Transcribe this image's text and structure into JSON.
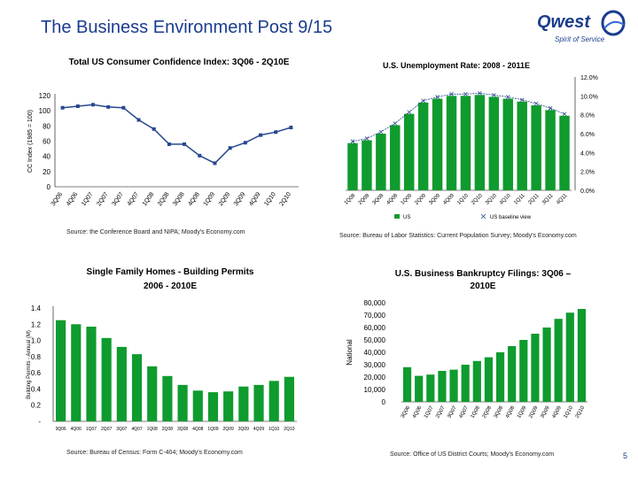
{
  "slide": {
    "title": "The Business Environment Post 9/15",
    "page_number": "5",
    "logo": {
      "name": "Qwest",
      "tagline": "Spirit of Service"
    }
  },
  "sources": {
    "confidence": "Source: the Conference Board and NIPA; Moody's Economy.com",
    "unemployment": "Source: Bureau of Labor Statistics: Current Population Survey; Moody's Economy.com",
    "homes": "Source: Bureau of Census: Form C-404; Moody's Economy.com",
    "bankruptcy": "Source: Office of US District Courts; Moody's Economy.com"
  },
  "colors": {
    "title": "#1a3d8f",
    "bar_green": "#0f9b2e",
    "line_blue": "#27478f"
  },
  "chart_data": [
    {
      "id": "confidence",
      "type": "line",
      "title": "Total US Consumer Confidence Index: 3Q06 - 2Q10E",
      "ylabel": "CC Index (1985 = 100)",
      "ylim": [
        0,
        120
      ],
      "yticks": [
        0,
        20,
        40,
        60,
        80,
        100,
        120
      ],
      "categories": [
        "3Q06",
        "4Q06",
        "1Q07",
        "2Q07",
        "3Q07",
        "4Q07",
        "1Q08",
        "2Q08",
        "3Q08",
        "4Q08",
        "1Q09",
        "2Q09",
        "3Q09",
        "4Q09",
        "1Q10",
        "2Q10"
      ],
      "values": [
        104,
        106,
        108,
        105,
        104,
        88,
        76,
        56,
        56,
        41,
        31,
        51,
        58,
        68,
        72,
        78
      ]
    },
    {
      "id": "unemployment",
      "type": "bar",
      "title": "U.S. Unemployment Rate: 2008 - 2011E",
      "ylim": [
        0,
        12
      ],
      "yticks": [
        "0.0%",
        "2.0%",
        "4.0%",
        "6.0%",
        "8.0%",
        "10.0%",
        "12.0%"
      ],
      "categories": [
        "1Q08",
        "2Q08",
        "3Q08",
        "4Q08",
        "1Q09",
        "2Q09",
        "3Q09",
        "4Q09",
        "1Q10",
        "2Q10",
        "3Q10",
        "4Q10",
        "1Q11",
        "2Q11",
        "3Q11",
        "4Q11"
      ],
      "series": [
        {
          "name": "US",
          "values": [
            5.0,
            5.3,
            6.0,
            6.9,
            8.1,
            9.3,
            9.7,
            10.0,
            10.0,
            10.1,
            9.9,
            9.7,
            9.4,
            9.0,
            8.5,
            7.9
          ]
        },
        {
          "name": "US baseline view",
          "values": [
            5.0,
            5.3,
            6.0,
            6.9,
            8.1,
            9.3,
            9.7,
            10.0,
            10.0,
            10.1,
            9.9,
            9.7,
            9.4,
            9.0,
            8.5,
            7.9
          ]
        }
      ],
      "legend": "bottom"
    },
    {
      "id": "homes",
      "type": "bar",
      "title": "Single Family Homes - Building Permits 2006 - 2010E",
      "ylabel": "Building Permits - Annual (M)",
      "ylim": [
        0,
        1.4
      ],
      "yticks": [
        "-",
        "0.2",
        "0.4",
        "0.6",
        "0.8",
        "1.0",
        "1.2",
        "1.4"
      ],
      "categories": [
        "3Q06",
        "4Q06",
        "1Q07",
        "2Q07",
        "3Q07",
        "4Q07",
        "1Q08",
        "2Q08",
        "3Q08",
        "4Q08",
        "1Q09",
        "2Q09",
        "3Q09",
        "4Q09",
        "1Q10",
        "2Q10"
      ],
      "values": [
        1.25,
        1.2,
        1.17,
        1.03,
        0.92,
        0.83,
        0.68,
        0.56,
        0.45,
        0.38,
        0.36,
        0.37,
        0.43,
        0.45,
        0.5,
        0.55
      ]
    },
    {
      "id": "bankruptcy",
      "type": "bar",
      "title": "U.S. Business Bankruptcy Filings: 3Q06 – 2010E",
      "ylabel": "National",
      "ylim": [
        0,
        80000
      ],
      "yticks": [
        "0",
        "10,000",
        "20,000",
        "30,000",
        "40,000",
        "50,000",
        "60,000",
        "70,000",
        "80,000"
      ],
      "categories": [
        "3Q06",
        "4Q06",
        "1Q07",
        "2Q07",
        "3Q07",
        "4Q07",
        "1Q08",
        "2Q08",
        "3Q08",
        "4Q08",
        "1Q09",
        "2Q09",
        "3Q09",
        "4Q09",
        "1Q10",
        "2Q10"
      ],
      "values": [
        28000,
        21000,
        22000,
        25000,
        26000,
        30000,
        33000,
        36000,
        40000,
        45000,
        50000,
        55000,
        60000,
        67000,
        72000,
        75000
      ]
    }
  ]
}
